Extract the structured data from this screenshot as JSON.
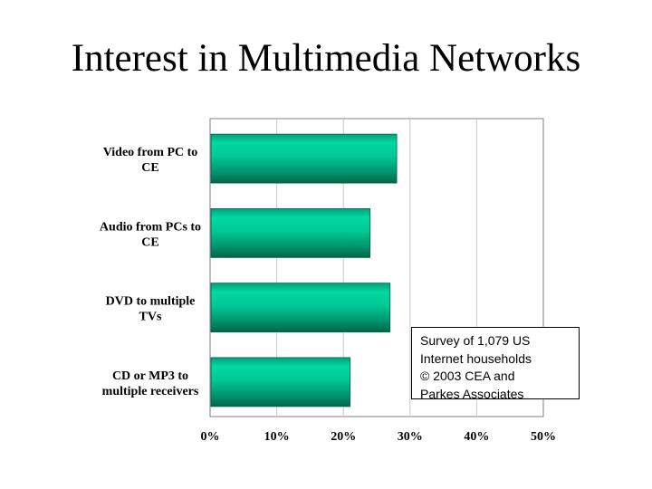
{
  "chart_data": {
    "type": "bar",
    "orientation": "horizontal",
    "title": "Interest in Multimedia Networks",
    "categories": [
      [
        "Video from PC to",
        "CE"
      ],
      [
        "Audio from PCs to",
        "CE"
      ],
      [
        "DVD to multiple",
        "TVs"
      ],
      [
        "CD or MP3 to",
        "multiple receivers"
      ]
    ],
    "values": [
      28,
      24,
      27,
      21
    ],
    "xlim": [
      0,
      50
    ],
    "xticks": [
      0,
      10,
      20,
      30,
      40,
      50
    ],
    "xtick_labels": [
      "0%",
      "10%",
      "20%",
      "30%",
      "40%",
      "50%"
    ],
    "grid": true,
    "bar_color": "#00C996",
    "bar_shadow_color": "#00664A",
    "annotation": [
      "Survey of 1,079 US",
      "Internet households",
      "© 2003 CEA and",
      "Parkes Associates"
    ]
  }
}
